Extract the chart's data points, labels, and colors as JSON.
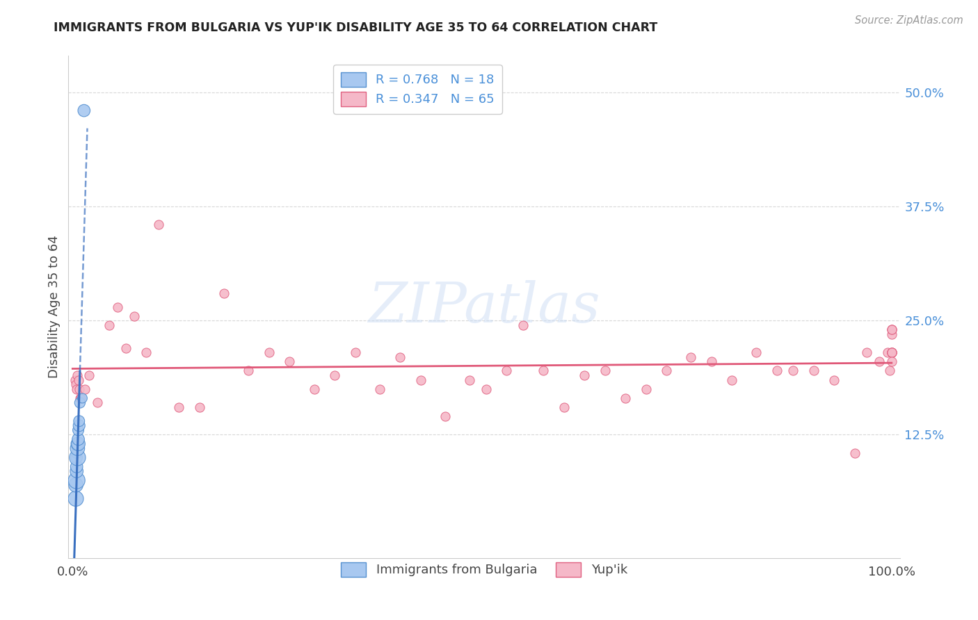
{
  "title": "IMMIGRANTS FROM BULGARIA VS YUP'IK DISABILITY AGE 35 TO 64 CORRELATION CHART",
  "source": "Source: ZipAtlas.com",
  "ylabel": "Disability Age 35 to 64",
  "legend_r1": "R = 0.768",
  "legend_n1": "N = 18",
  "legend_r2": "R = 0.347",
  "legend_n2": "N = 65",
  "bg_color": "#ffffff",
  "blue_fill": "#a8c8f0",
  "pink_fill": "#f5b8c8",
  "blue_edge": "#5590d0",
  "pink_edge": "#e06080",
  "trend_blue": "#3a70c0",
  "trend_pink": "#e05878",
  "grid_color": "#d8d8d8",
  "axis_color": "#cccccc",
  "title_color": "#222222",
  "tick_color": "#4a90d9",
  "watermark_color": "#ccddf5",
  "source_color": "#999999",
  "xlim": [
    0.0,
    1.0
  ],
  "ylim": [
    0.0,
    0.52
  ],
  "ytick_vals": [
    0.0,
    0.125,
    0.25,
    0.375,
    0.5
  ],
  "ytick_labels": [
    "",
    "12.5%",
    "25.0%",
    "37.5%",
    "50.0%"
  ],
  "bulgaria_x": [
    0.004,
    0.004,
    0.005,
    0.005,
    0.005,
    0.005,
    0.005,
    0.006,
    0.006,
    0.006,
    0.007,
    0.007,
    0.007,
    0.008,
    0.008,
    0.009,
    0.012,
    0.014
  ],
  "bulgaria_y": [
    0.055,
    0.07,
    0.075,
    0.085,
    0.09,
    0.1,
    0.105,
    0.1,
    0.11,
    0.115,
    0.115,
    0.12,
    0.13,
    0.135,
    0.14,
    0.16,
    0.165,
    0.48
  ],
  "bulgaria_sizes": [
    250,
    220,
    300,
    180,
    160,
    140,
    120,
    280,
    220,
    180,
    200,
    160,
    130,
    150,
    130,
    120,
    100,
    160
  ],
  "yupik_x": [
    0.003,
    0.004,
    0.005,
    0.006,
    0.007,
    0.008,
    0.009,
    0.01,
    0.015,
    0.02,
    0.03,
    0.045,
    0.055,
    0.065,
    0.075,
    0.09,
    0.105,
    0.13,
    0.155,
    0.185,
    0.215,
    0.24,
    0.265,
    0.295,
    0.32,
    0.345,
    0.375,
    0.4,
    0.425,
    0.455,
    0.485,
    0.505,
    0.53,
    0.55,
    0.575,
    0.6,
    0.625,
    0.65,
    0.675,
    0.7,
    0.725,
    0.755,
    0.78,
    0.805,
    0.835,
    0.86,
    0.88,
    0.905,
    0.93,
    0.955,
    0.97,
    0.985,
    0.995,
    0.998,
    1.0,
    1.0,
    1.0,
    1.0,
    1.0,
    1.0,
    1.0,
    1.0,
    1.0,
    1.0,
    1.0
  ],
  "yupik_y": [
    0.185,
    0.18,
    0.175,
    0.19,
    0.185,
    0.175,
    0.165,
    0.165,
    0.175,
    0.19,
    0.16,
    0.245,
    0.265,
    0.22,
    0.255,
    0.215,
    0.355,
    0.155,
    0.155,
    0.28,
    0.195,
    0.215,
    0.205,
    0.175,
    0.19,
    0.215,
    0.175,
    0.21,
    0.185,
    0.145,
    0.185,
    0.175,
    0.195,
    0.245,
    0.195,
    0.155,
    0.19,
    0.195,
    0.165,
    0.175,
    0.195,
    0.21,
    0.205,
    0.185,
    0.215,
    0.195,
    0.195,
    0.195,
    0.185,
    0.105,
    0.215,
    0.205,
    0.215,
    0.195,
    0.215,
    0.24,
    0.215,
    0.215,
    0.235,
    0.215,
    0.215,
    0.215,
    0.205,
    0.24,
    0.24
  ]
}
